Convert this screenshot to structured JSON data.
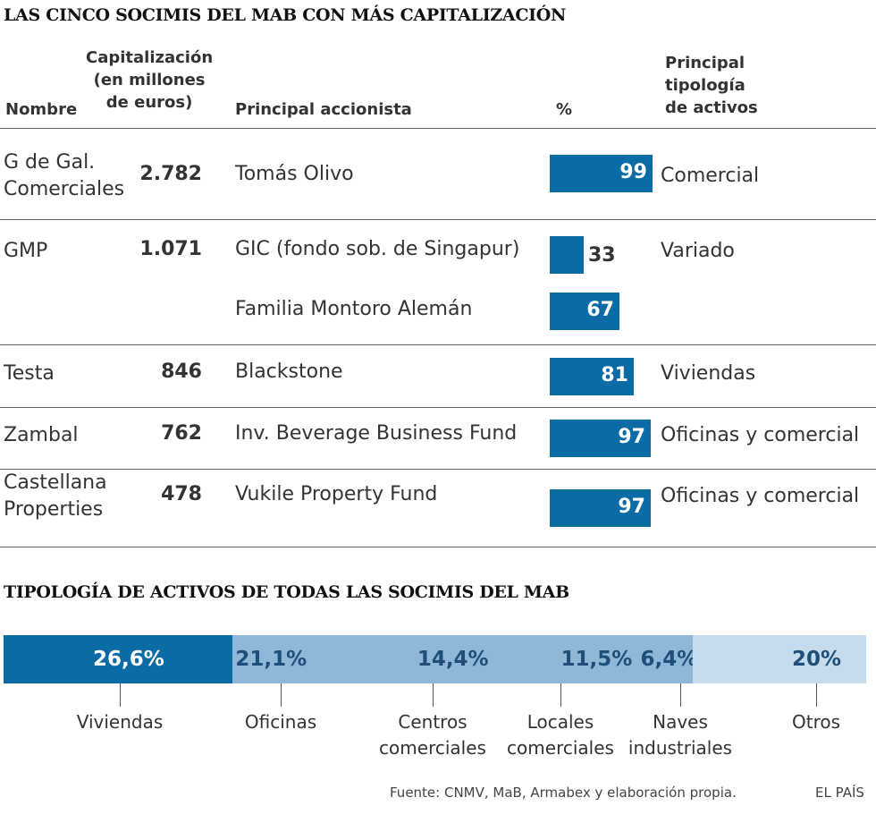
{
  "title1": "LAS CINCO SOCIMIS DEL MAB CON MÁS CAPITALIZACIÓN",
  "headers": {
    "nombre": "Nombre",
    "cap1": "Capitalización",
    "cap2": "(en millones",
    "cap3": "de euros)",
    "accionista": "Principal accionista",
    "pct": "%",
    "tip1": "Principal",
    "tip2": "tipología",
    "tip3": "de activos"
  },
  "chart_data": [
    {
      "type": "bar",
      "title": "LAS CINCO SOCIMIS DEL MAB CON MÁS CAPITALIZACIÓN",
      "rows": [
        {
          "name": [
            "G de Gal.",
            "Comerciales"
          ],
          "cap": "2.782",
          "holders": [
            {
              "name": "Tomás Olivo",
              "pct": 99
            }
          ],
          "tipologia": "Comercial"
        },
        {
          "name": [
            "GMP"
          ],
          "cap": "1.071",
          "holders": [
            {
              "name": "GIC (fondo sob. de Singapur)",
              "pct": 33
            },
            {
              "name": "Familia Montoro Alemán",
              "pct": 67
            }
          ],
          "tipologia": "Variado"
        },
        {
          "name": [
            "Testa"
          ],
          "cap": "846",
          "holders": [
            {
              "name": "Blackstone",
              "pct": 81
            }
          ],
          "tipologia": "Viviendas"
        },
        {
          "name": [
            "Zambal"
          ],
          "cap": "762",
          "holders": [
            {
              "name": "Inv. Beverage Business Fund",
              "pct": 97
            }
          ],
          "tipologia": "Oficinas y comercial"
        },
        {
          "name": [
            "Castellana",
            "Properties"
          ],
          "cap": "478",
          "holders": [
            {
              "name": "Vukile Property Fund",
              "pct": 97
            }
          ],
          "tipologia": "Oficinas y comercial"
        }
      ],
      "bar_color": "#0b6ba4"
    },
    {
      "type": "bar",
      "title": "TIPOLOGÍA DE ACTIVOS DE TODAS LAS SOCIMIS DEL MAB",
      "segments": [
        {
          "label": "26,6%",
          "value": 26.6,
          "category": [
            "Viviendas"
          ],
          "color": "#0b6ba4",
          "text_color": "#ffffff"
        },
        {
          "label": "21,1%",
          "value": 21.1,
          "category": [
            "Oficinas"
          ],
          "color": "#8fb8d8",
          "text_color": "#1e4f78"
        },
        {
          "label": "14,4%",
          "value": 14.4,
          "category": [
            "Centros",
            "comerciales"
          ],
          "color": "#8fb8d8",
          "text_color": "#1e4f78"
        },
        {
          "label": "11,5%",
          "value": 11.5,
          "category": [
            "Locales",
            "comerciales"
          ],
          "color": "#8fb8d8",
          "text_color": "#1e4f78"
        },
        {
          "label": "6,4%",
          "value": 6.4,
          "category": [
            "Naves",
            "industriales"
          ],
          "color": "#8fb8d8",
          "text_color": "#1e4f78"
        },
        {
          "label": "20%",
          "value": 20,
          "category": [
            "Otros"
          ],
          "color": "#c6dbec",
          "text_color": "#1e4f78"
        }
      ]
    }
  ],
  "source": "Fuente: CNMV, MaB, Armabex y elaboración propia.",
  "brand": "EL PAÍS"
}
